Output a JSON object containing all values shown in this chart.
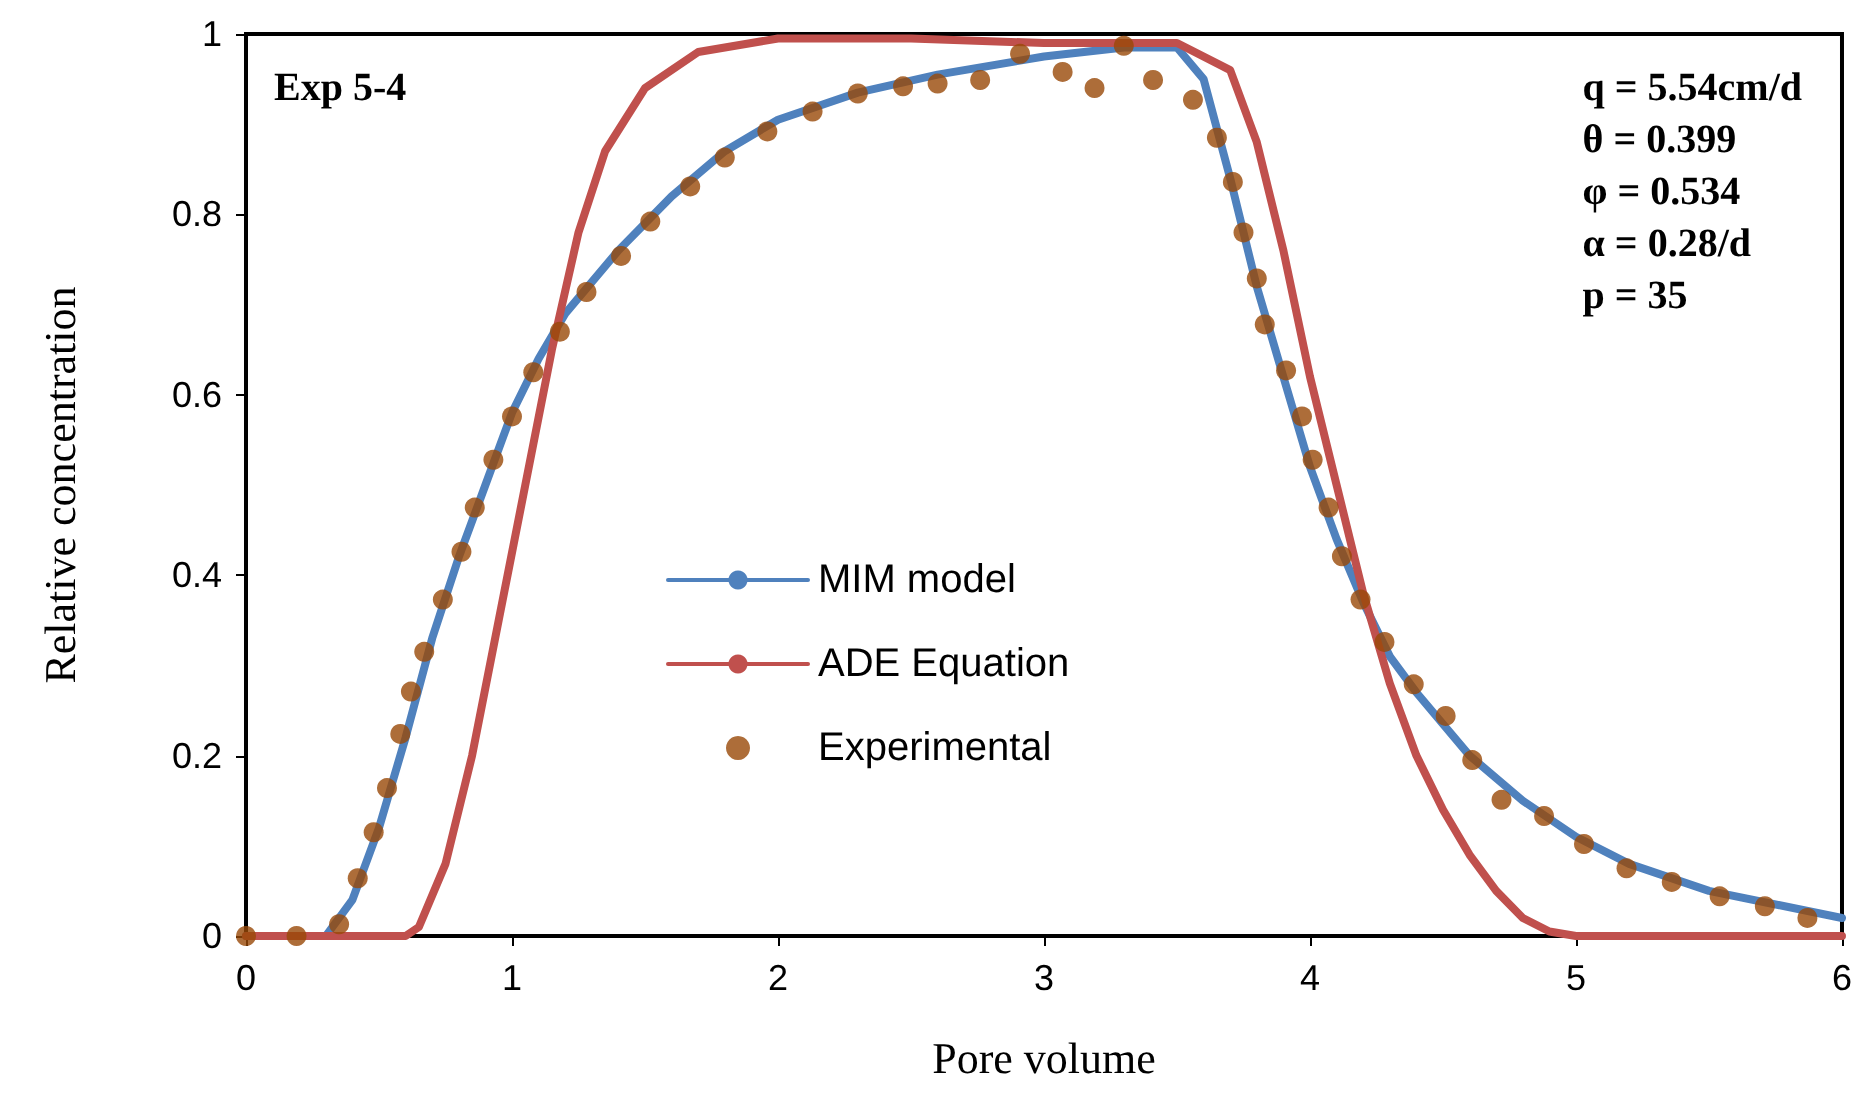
{
  "chart_data": {
    "type": "line",
    "xlabel": "Pore volume",
    "ylabel": "Relative concentration",
    "annotations": [
      "Exp 5-4",
      "q = 5.54cm/d\nθ = 0.399\nφ = 0.534\nα = 0.28/d\np = 35"
    ],
    "xlim": [
      0,
      6
    ],
    "xticks": [
      0,
      1,
      2,
      3,
      4,
      5,
      6
    ],
    "ylim": [
      0,
      1
    ],
    "yticks": [
      0,
      0.2,
      0.4,
      0.6,
      0.8,
      1
    ],
    "grid": false,
    "legend": "bottom",
    "series": [
      {
        "name": "MIM model",
        "color": "#4f81bd",
        "x": [
          0,
          0.3,
          0.4,
          0.5,
          0.6,
          0.7,
          0.8,
          0.9,
          1.0,
          1.1,
          1.2,
          1.4,
          1.6,
          1.8,
          2.0,
          2.3,
          2.6,
          3.0,
          3.3,
          3.5,
          3.6,
          3.7,
          3.8,
          3.9,
          4.0,
          4.1,
          4.2,
          4.3,
          4.4,
          4.6,
          4.8,
          5.0,
          5.2,
          5.5,
          6.0
        ],
        "values": [
          0,
          0,
          0.04,
          0.12,
          0.22,
          0.33,
          0.42,
          0.5,
          0.58,
          0.64,
          0.69,
          0.76,
          0.82,
          0.87,
          0.905,
          0.935,
          0.955,
          0.975,
          0.985,
          0.985,
          0.95,
          0.84,
          0.72,
          0.62,
          0.52,
          0.44,
          0.37,
          0.31,
          0.27,
          0.2,
          0.15,
          0.11,
          0.08,
          0.05,
          0.02
        ]
      },
      {
        "name": "ADE Equation",
        "color": "#c0504d",
        "x": [
          0,
          0.6,
          0.65,
          0.75,
          0.85,
          0.95,
          1.05,
          1.15,
          1.25,
          1.35,
          1.5,
          1.7,
          2.0,
          2.5,
          3.0,
          3.5,
          3.7,
          3.8,
          3.9,
          4.0,
          4.1,
          4.2,
          4.3,
          4.4,
          4.5,
          4.6,
          4.7,
          4.8,
          4.9,
          5.0,
          6.0
        ],
        "values": [
          0,
          0,
          0.01,
          0.08,
          0.2,
          0.35,
          0.5,
          0.65,
          0.78,
          0.87,
          0.94,
          0.98,
          0.995,
          0.995,
          0.99,
          0.99,
          0.96,
          0.88,
          0.76,
          0.62,
          0.5,
          0.38,
          0.28,
          0.2,
          0.14,
          0.09,
          0.05,
          0.02,
          0.005,
          0,
          0
        ]
      },
      {
        "name": "Experimental",
        "type": "scatter",
        "marker": "circle",
        "color": "#984807",
        "x": [
          0,
          0.19,
          0.35,
          0.42,
          0.48,
          0.53,
          0.58,
          0.62,
          0.67,
          0.74,
          0.81,
          0.86,
          0.93,
          1.0,
          1.08,
          1.18,
          1.28,
          1.41,
          1.52,
          1.67,
          1.8,
          1.96,
          2.13,
          2.3,
          2.47,
          2.6,
          2.76,
          2.91,
          3.07,
          3.19,
          3.3,
          3.41,
          3.56,
          3.65,
          3.71,
          3.75,
          3.8,
          3.83,
          3.91,
          3.97,
          4.01,
          4.07,
          4.12,
          4.19,
          4.28,
          4.39,
          4.51,
          4.61,
          4.72,
          4.88,
          5.03,
          5.19,
          5.36,
          5.54,
          5.71,
          5.87
        ],
        "values": [
          0,
          0,
          0.013,
          0.064,
          0.115,
          0.164,
          0.224,
          0.271,
          0.315,
          0.373,
          0.426,
          0.475,
          0.528,
          0.576,
          0.625,
          0.67,
          0.714,
          0.754,
          0.792,
          0.831,
          0.863,
          0.892,
          0.914,
          0.934,
          0.942,
          0.945,
          0.949,
          0.978,
          0.958,
          0.94,
          0.987,
          0.949,
          0.927,
          0.885,
          0.836,
          0.78,
          0.729,
          0.678,
          0.627,
          0.576,
          0.528,
          0.475,
          0.421,
          0.373,
          0.326,
          0.279,
          0.244,
          0.195,
          0.151,
          0.133,
          0.102,
          0.075,
          0.06,
          0.044,
          0.033,
          0.02
        ]
      }
    ]
  }
}
